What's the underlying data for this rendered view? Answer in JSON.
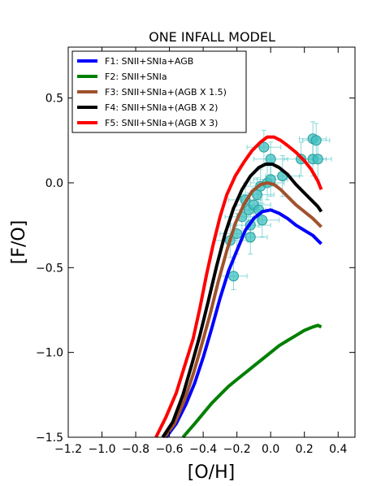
{
  "chart_data": {
    "type": "line",
    "title": "ONE INFALL MODEL",
    "xlabel": "[O/H]",
    "ylabel": "[F/O]",
    "xlim": [
      -1.2,
      0.5
    ],
    "ylim": [
      -1.5,
      0.8
    ],
    "xticks": [
      -1.2,
      -1.0,
      -0.8,
      -0.6,
      -0.4,
      -0.2,
      0.0,
      0.2,
      0.4
    ],
    "xtick_labels": [
      "−1.2",
      "−1.0",
      "−0.8",
      "−0.6",
      "−0.4",
      "−0.2",
      "0.0",
      "0.2",
      "0.4"
    ],
    "yticks": [
      -1.5,
      -1.0,
      -0.5,
      0.0,
      0.5
    ],
    "ytick_labels": [
      "−1.5",
      "−1.0",
      "−0.5",
      "0.0",
      "0.5"
    ],
    "grid": false,
    "legend_position": "top-left",
    "series": [
      {
        "name": "F1: SNII+SNIa+AGB",
        "color": "#0000ff",
        "x": [
          -0.62,
          -0.56,
          -0.5,
          -0.45,
          -0.4,
          -0.35,
          -0.3,
          -0.25,
          -0.2,
          -0.15,
          -0.1,
          -0.05,
          0.0,
          0.05,
          0.1,
          0.15,
          0.2,
          0.25,
          0.28,
          0.3
        ],
        "y": [
          -1.5,
          -1.42,
          -1.3,
          -1.18,
          -1.03,
          -0.86,
          -0.68,
          -0.52,
          -0.4,
          -0.28,
          -0.21,
          -0.17,
          -0.16,
          -0.18,
          -0.21,
          -0.25,
          -0.28,
          -0.31,
          -0.34,
          -0.36
        ]
      },
      {
        "name": "F2: SNII+SNIa",
        "color": "#008000",
        "x": [
          -0.52,
          -0.45,
          -0.4,
          -0.35,
          -0.3,
          -0.25,
          -0.2,
          -0.15,
          -0.1,
          -0.05,
          0.0,
          0.05,
          0.1,
          0.15,
          0.2,
          0.25,
          0.28,
          0.3
        ],
        "y": [
          -1.5,
          -1.42,
          -1.36,
          -1.3,
          -1.25,
          -1.2,
          -1.16,
          -1.12,
          -1.08,
          -1.04,
          -1.0,
          -0.96,
          -0.93,
          -0.9,
          -0.87,
          -0.85,
          -0.84,
          -0.85
        ]
      },
      {
        "name": "F3: SNII+SNIa+(AGB X 1.5)",
        "color": "#a0522d",
        "x": [
          -0.63,
          -0.57,
          -0.51,
          -0.46,
          -0.41,
          -0.36,
          -0.31,
          -0.26,
          -0.21,
          -0.16,
          -0.11,
          -0.06,
          -0.02,
          0.02,
          0.06,
          0.1,
          0.15,
          0.2,
          0.25,
          0.28,
          0.3
        ],
        "y": [
          -1.5,
          -1.42,
          -1.28,
          -1.13,
          -0.96,
          -0.78,
          -0.58,
          -0.4,
          -0.24,
          -0.13,
          -0.05,
          -0.01,
          0.0,
          -0.01,
          -0.04,
          -0.08,
          -0.13,
          -0.17,
          -0.21,
          -0.24,
          -0.26
        ]
      },
      {
        "name": "F4: SNII+SNIa+(AGB X 2)",
        "color": "#000000",
        "x": [
          -0.64,
          -0.58,
          -0.52,
          -0.47,
          -0.42,
          -0.37,
          -0.32,
          -0.27,
          -0.22,
          -0.17,
          -0.12,
          -0.07,
          -0.03,
          0.01,
          0.05,
          0.1,
          0.15,
          0.2,
          0.25,
          0.28,
          0.3
        ],
        "y": [
          -1.5,
          -1.41,
          -1.25,
          -1.08,
          -0.9,
          -0.7,
          -0.49,
          -0.3,
          -0.15,
          -0.04,
          0.04,
          0.09,
          0.11,
          0.11,
          0.09,
          0.05,
          -0.01,
          -0.06,
          -0.11,
          -0.14,
          -0.17
        ]
      },
      {
        "name": "F5: SNII+SNIa+(AGB X 3)",
        "color": "#ff0000",
        "x": [
          -0.68,
          -0.62,
          -0.56,
          -0.51,
          -0.46,
          -0.42,
          -0.38,
          -0.34,
          -0.3,
          -0.26,
          -0.21,
          -0.16,
          -0.11,
          -0.06,
          -0.02,
          0.02,
          0.06,
          0.1,
          0.15,
          0.2,
          0.24,
          0.28,
          0.3
        ],
        "y": [
          -1.5,
          -1.38,
          -1.24,
          -1.08,
          -0.92,
          -0.74,
          -0.54,
          -0.36,
          -0.2,
          -0.07,
          0.04,
          0.12,
          0.19,
          0.24,
          0.27,
          0.27,
          0.25,
          0.22,
          0.18,
          0.13,
          0.08,
          0.01,
          -0.04
        ]
      }
    ],
    "observations": {
      "color": "#40c0c0",
      "points": [
        {
          "x": -0.24,
          "y": -0.34,
          "xerr": 0.1,
          "yerr": 0.1
        },
        {
          "x": -0.22,
          "y": -0.55,
          "xerr": 0.08,
          "yerr": 0.08
        },
        {
          "x": -0.2,
          "y": -0.3,
          "xerr": 0.1,
          "yerr": 0.12
        },
        {
          "x": -0.17,
          "y": -0.2,
          "xerr": 0.1,
          "yerr": 0.12
        },
        {
          "x": -0.15,
          "y": -0.1,
          "xerr": 0.1,
          "yerr": 0.1
        },
        {
          "x": -0.13,
          "y": -0.16,
          "xerr": 0.1,
          "yerr": 0.1
        },
        {
          "x": -0.12,
          "y": -0.25,
          "xerr": 0.12,
          "yerr": 0.1
        },
        {
          "x": -0.12,
          "y": -0.32,
          "xerr": 0.1,
          "yerr": 0.1
        },
        {
          "x": -0.1,
          "y": -0.13,
          "xerr": 0.1,
          "yerr": 0.1
        },
        {
          "x": -0.08,
          "y": -0.07,
          "xerr": 0.1,
          "yerr": 0.1
        },
        {
          "x": -0.07,
          "y": -0.16,
          "xerr": 0.08,
          "yerr": 0.1
        },
        {
          "x": -0.06,
          "y": -0.02,
          "xerr": 0.1,
          "yerr": 0.1
        },
        {
          "x": -0.05,
          "y": -0.22,
          "xerr": 0.1,
          "yerr": 0.1
        },
        {
          "x": -0.04,
          "y": 0.21,
          "xerr": 0.1,
          "yerr": 0.1
        },
        {
          "x": -0.02,
          "y": 0.0,
          "xerr": 0.1,
          "yerr": 0.1
        },
        {
          "x": 0.0,
          "y": 0.02,
          "xerr": 0.1,
          "yerr": 0.1
        },
        {
          "x": 0.0,
          "y": 0.14,
          "xerr": 0.1,
          "yerr": 0.1
        },
        {
          "x": 0.07,
          "y": 0.04,
          "xerr": 0.1,
          "yerr": 0.12
        },
        {
          "x": 0.18,
          "y": 0.14,
          "xerr": 0.1,
          "yerr": 0.1
        },
        {
          "x": 0.25,
          "y": 0.26,
          "xerr": 0.08,
          "yerr": 0.1
        },
        {
          "x": 0.25,
          "y": 0.14,
          "xerr": 0.08,
          "yerr": 0.1
        },
        {
          "x": 0.27,
          "y": 0.25,
          "xerr": 0.08,
          "yerr": 0.1
        },
        {
          "x": 0.28,
          "y": 0.14,
          "xerr": 0.08,
          "yerr": 0.12
        }
      ]
    }
  }
}
